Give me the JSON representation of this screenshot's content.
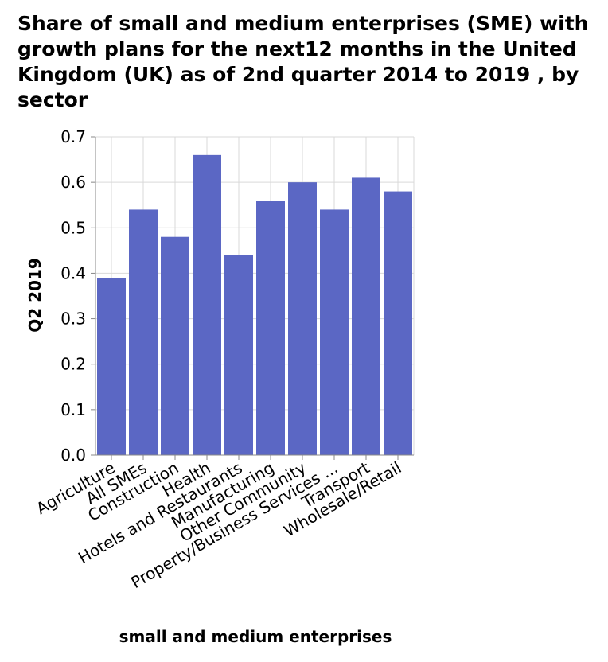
{
  "chart_data": {
    "type": "bar",
    "title": "Share of small and medium enterprises (SME) with growth plans for the next12 months in the United Kingdom (UK) as of 2nd quarter 2014 to 2019 , by sector",
    "xlabel": "small and medium enterprises",
    "ylabel": "Q2 2019",
    "categories": [
      "Agriculture",
      "All SMEs",
      "Construction",
      "Health",
      "Hotels and Restaurants",
      "Manufacturing",
      "Other Community",
      "Property/Business Services ...",
      "Transport",
      "Wholesale/Retail"
    ],
    "values": [
      0.39,
      0.54,
      0.48,
      0.66,
      0.44,
      0.56,
      0.6,
      0.54,
      0.61,
      0.58
    ],
    "ylim": [
      0,
      0.7
    ],
    "yticks": [
      "0.0",
      "0.1",
      "0.2",
      "0.3",
      "0.4",
      "0.5",
      "0.6",
      "0.7"
    ],
    "grid": true,
    "bar_color": "#5b67c4",
    "grid_color": "#d9d9d9"
  }
}
